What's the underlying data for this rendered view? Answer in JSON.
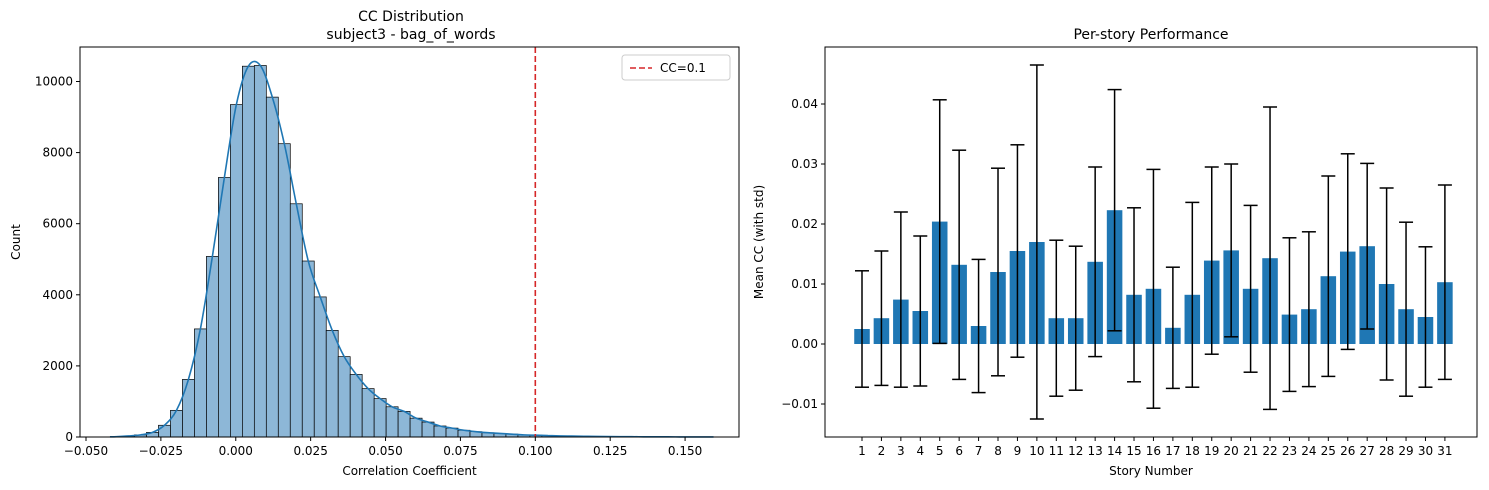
{
  "chart_data": [
    {
      "type": "histogram",
      "title_lines": [
        "CC Distribution",
        "subject3 - bag_of_words"
      ],
      "xlabel": "Correlation Coefficient",
      "ylabel": "Count",
      "xlim": [
        -0.052,
        0.168
      ],
      "ylim": [
        0,
        10970
      ],
      "xticks": [
        -0.05,
        -0.025,
        0.0,
        0.025,
        0.05,
        0.075,
        0.1,
        0.125,
        0.15
      ],
      "xtick_labels": [
        "−0.050",
        "−0.025",
        "0.000",
        "0.025",
        "0.050",
        "0.075",
        "0.100",
        "0.125",
        "0.150"
      ],
      "yticks": [
        0,
        2000,
        4000,
        6000,
        8000,
        10000
      ],
      "ytick_labels": [
        "0",
        "2000",
        "4000",
        "6000",
        "8000",
        "10000"
      ],
      "bin_start": -0.0418,
      "bin_width": 0.004,
      "counts": [
        10,
        30,
        60,
        130,
        330,
        750,
        1620,
        3040,
        5080,
        7300,
        9350,
        10430,
        10450,
        9560,
        8250,
        6560,
        4950,
        3940,
        3000,
        2260,
        1760,
        1360,
        1080,
        850,
        720,
        530,
        420,
        310,
        250,
        190,
        150,
        120,
        100,
        80,
        60,
        50,
        40,
        30,
        25,
        20,
        15,
        12,
        10,
        8,
        6,
        5,
        4,
        3,
        3,
        2
      ],
      "kde_curve": true,
      "threshold": {
        "x": 0.1,
        "label": "CC=0.1",
        "color": "#d62728"
      },
      "legend_position": "top-right",
      "bar_color": "#8db7d7",
      "line_color": "#1f77b4"
    },
    {
      "type": "bar",
      "title": "Per-story Performance",
      "xlabel": "Story Number",
      "ylabel": "Mean CC (with std)",
      "ylim": [
        -0.0155,
        0.0495
      ],
      "yticks": [
        -0.01,
        0.0,
        0.01,
        0.02,
        0.03,
        0.04
      ],
      "ytick_labels": [
        "−0.01",
        "0.00",
        "0.01",
        "0.02",
        "0.03",
        "0.04"
      ],
      "categories": [
        "1",
        "2",
        "3",
        "4",
        "5",
        "6",
        "7",
        "8",
        "9",
        "10",
        "11",
        "12",
        "13",
        "14",
        "15",
        "16",
        "17",
        "18",
        "19",
        "20",
        "21",
        "22",
        "23",
        "24",
        "25",
        "26",
        "27",
        "28",
        "29",
        "30",
        "31"
      ],
      "values": [
        0.0025,
        0.0043,
        0.0074,
        0.0055,
        0.0204,
        0.0132,
        0.003,
        0.012,
        0.0155,
        0.017,
        0.0043,
        0.0043,
        0.0137,
        0.0223,
        0.0082,
        0.0092,
        0.0027,
        0.0082,
        0.0139,
        0.0156,
        0.0092,
        0.0143,
        0.0049,
        0.0058,
        0.0113,
        0.0154,
        0.0163,
        0.01,
        0.0058,
        0.0045,
        0.0103
      ],
      "errors": [
        0.0097,
        0.0112,
        0.0146,
        0.0125,
        0.0203,
        0.0191,
        0.0111,
        0.0173,
        0.0177,
        0.0295,
        0.013,
        0.012,
        0.0158,
        0.0201,
        0.0145,
        0.0199,
        0.0101,
        0.0154,
        0.0156,
        0.0144,
        0.0139,
        0.0252,
        0.0128,
        0.0129,
        0.0167,
        0.0163,
        0.0138,
        0.016,
        0.0145,
        0.0117,
        0.0162
      ],
      "bar_color": "#1f77b4",
      "error_color": "#000000"
    }
  ]
}
